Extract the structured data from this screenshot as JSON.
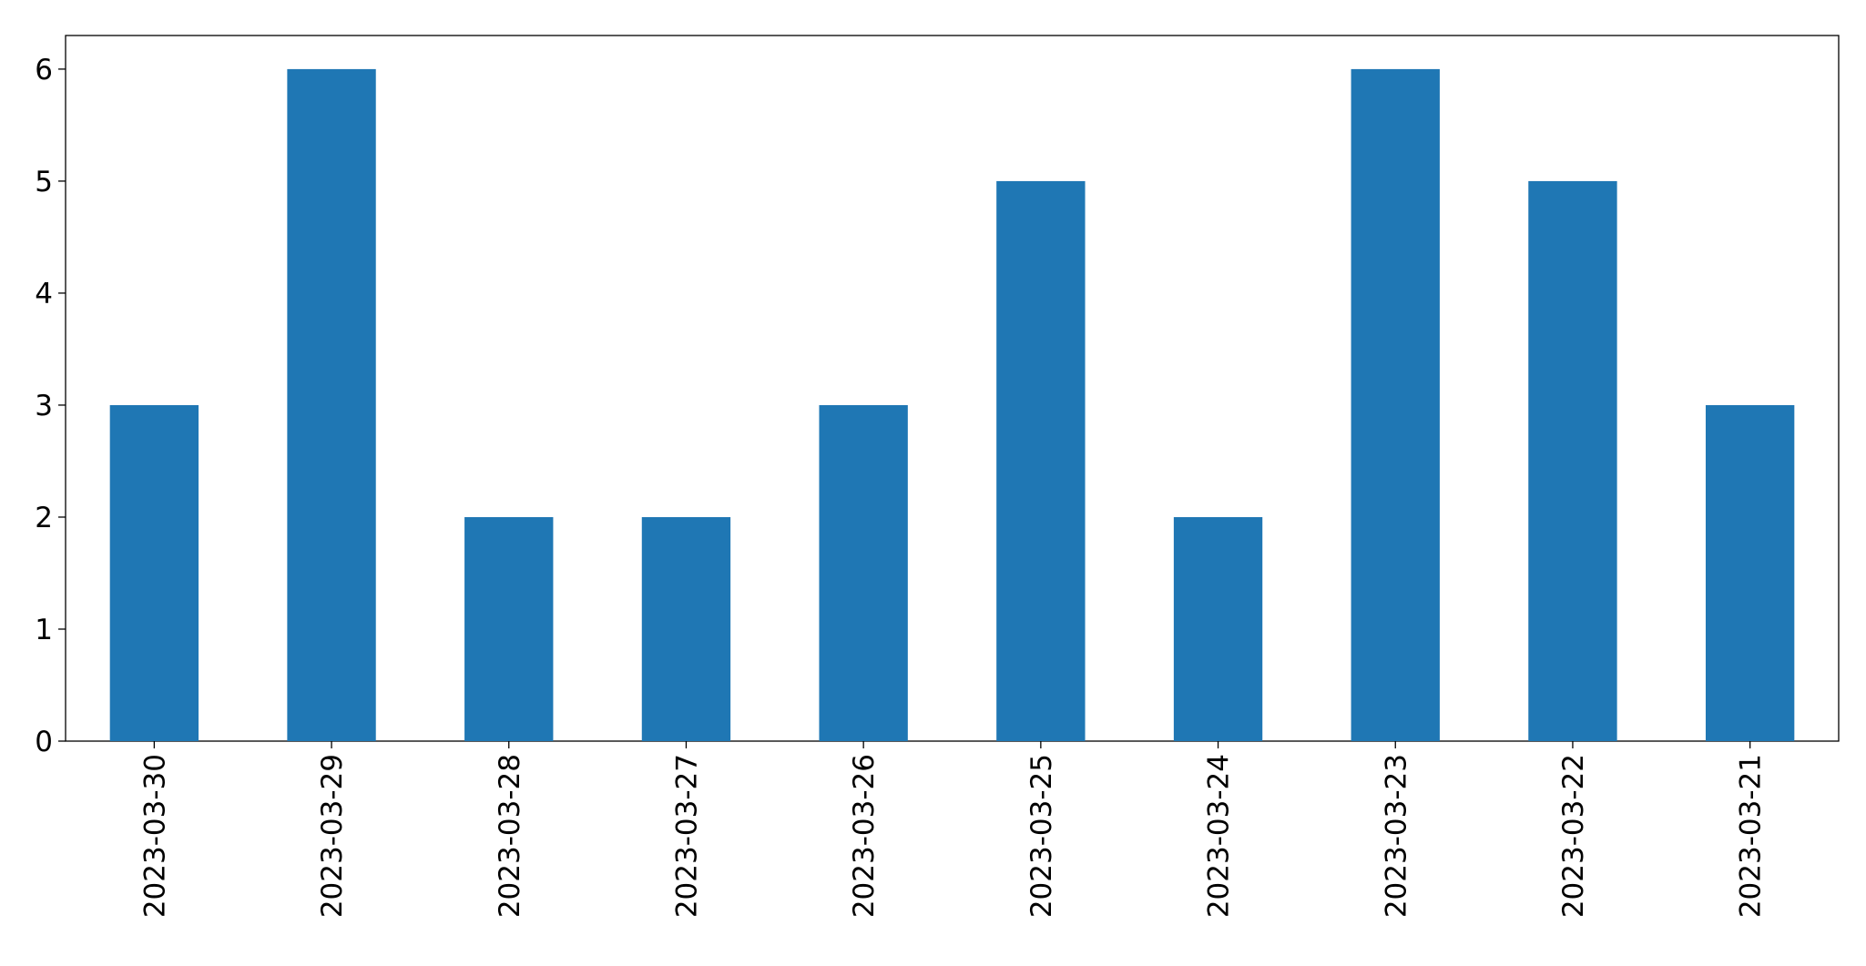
{
  "chart_data": {
    "type": "bar",
    "categories": [
      "2023-03-30",
      "2023-03-29",
      "2023-03-28",
      "2023-03-27",
      "2023-03-26",
      "2023-03-25",
      "2023-03-24",
      "2023-03-23",
      "2023-03-22",
      "2023-03-21"
    ],
    "values": [
      3,
      6,
      2,
      2,
      3,
      5,
      2,
      6,
      5,
      3
    ],
    "color": "#1f77b4",
    "ylim": [
      0,
      6.3
    ],
    "yticks": [
      0,
      1,
      2,
      3,
      4,
      5,
      6
    ],
    "grid": false
  }
}
